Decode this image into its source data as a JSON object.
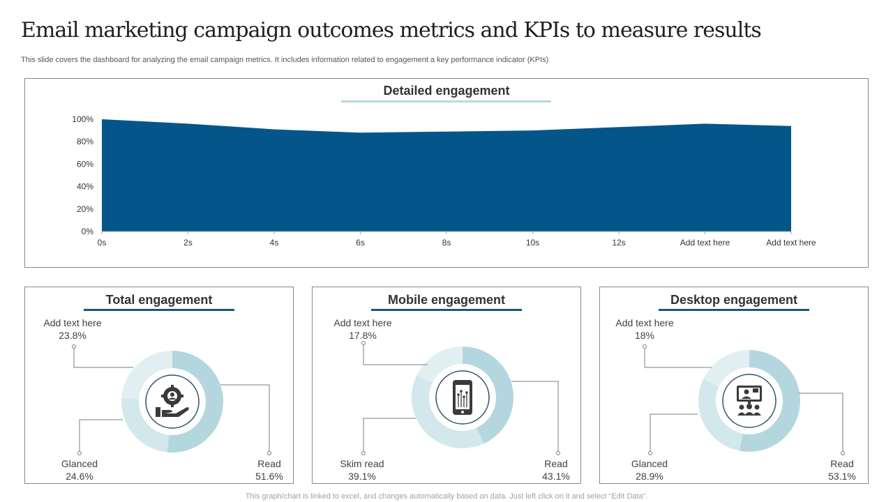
{
  "slide": {
    "title": "Email marketing campaign outcomes metrics and KPIs to measure results",
    "subtitle": "This slide covers the dashboard for analyzing the email campaign metrics. It includes information related to engagement a key performance indicator (KPIs)",
    "footer": "This graph/chart is linked to excel, and changes automatically based on data. Just left click on it and select “Edit Data”."
  },
  "chart_data": [
    {
      "type": "area",
      "title": "Detailed engagement",
      "categories": [
        "0s",
        "2s",
        "4s",
        "6s",
        "8s",
        "10s",
        "12s",
        "Add text here",
        "Add text here"
      ],
      "values": [
        100,
        96,
        91,
        88,
        89,
        90,
        93,
        96,
        94
      ],
      "y_ticks": [
        "0%",
        "20%",
        "40%",
        "60%",
        "80%",
        "100%"
      ],
      "ylim": [
        0,
        100
      ],
      "color": "#04568a",
      "grid": false,
      "legend": "none"
    },
    {
      "type": "pie",
      "variant": "donut",
      "title": "Total engagement",
      "icon": "gear-hand-icon",
      "slices": [
        {
          "label": "Read",
          "value": 51.6,
          "display": "51.6%",
          "color": "#b4d7df"
        },
        {
          "label": "Glanced",
          "value": 24.6,
          "display": "24.6%",
          "color": "#d2e8ec"
        },
        {
          "label": "Add text here",
          "value": 23.8,
          "display": "23.8%",
          "color": "#e2eff2"
        }
      ]
    },
    {
      "type": "pie",
      "variant": "donut",
      "title": "Mobile engagement",
      "icon": "mobile-phone-icon",
      "slices": [
        {
          "label": "Read",
          "value": 43.1,
          "display": "43.1%",
          "color": "#b4d7df"
        },
        {
          "label": "Skim read",
          "value": 39.1,
          "display": "39.1%",
          "color": "#d2e8ec"
        },
        {
          "label": "Add text here",
          "value": 17.8,
          "display": "17.8%",
          "color": "#e2eff2"
        }
      ]
    },
    {
      "type": "pie",
      "variant": "donut",
      "title": "Desktop engagement",
      "icon": "desktop-meeting-icon",
      "slices": [
        {
          "label": "Read",
          "value": 53.1,
          "display": "53.1%",
          "color": "#b4d7df"
        },
        {
          "label": "Glanced",
          "value": 28.9,
          "display": "28.9%",
          "color": "#d2e8ec"
        },
        {
          "label": "Add text here",
          "value": 18,
          "display": "18%",
          "color": "#e2eff2"
        }
      ]
    }
  ]
}
